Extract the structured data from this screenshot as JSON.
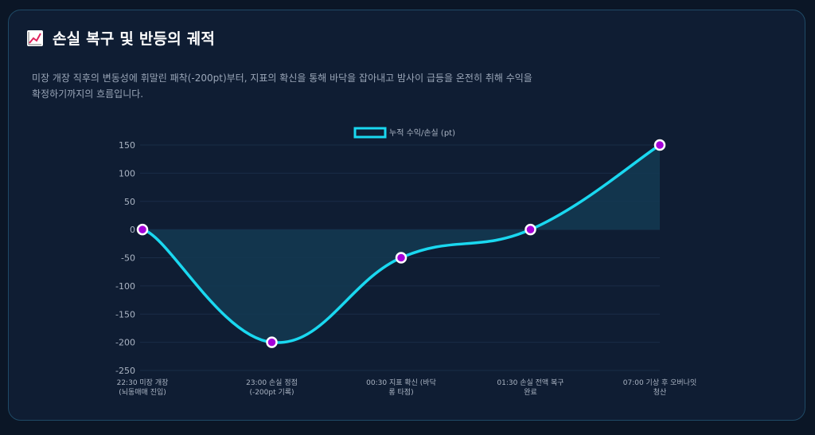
{
  "header": {
    "title": "손실 복구 및 반등의 궤적",
    "icon": "chart-increasing-icon",
    "subtitle": "미장 개장 직후의 변동성에 휘말린 패착(-200pt)부터, 지표의 확신을 통해 바닥을 잡아내고 밤사이 급등을 온전히 취해 수익을 확정하기까지의 흐름입니다."
  },
  "colors": {
    "line": "#1ad8f0",
    "fill": "#133a52",
    "point_fill": "#a400d8",
    "point_stroke": "#ffffff",
    "grid": "#1a2d47"
  },
  "chart_data": {
    "type": "line",
    "legend": "top-center",
    "grid": true,
    "ylim": [
      -250,
      150
    ],
    "yticks": [
      150,
      100,
      50,
      0,
      -50,
      -100,
      -150,
      -200,
      -250
    ],
    "categories": [
      [
        "22:30 미장 개장",
        "(뇌동매매 진입)"
      ],
      [
        "23:00 손실 정점",
        "(-200pt 기록)"
      ],
      [
        "00:30 지표 확신 (바닥",
        "롱 타점)"
      ],
      [
        "01:30 손실 전액 복구",
        "완료"
      ],
      [
        "07:00 기상 후 오버나잇",
        "청산"
      ]
    ],
    "series": [
      {
        "name": "누적 수익/손실 (pt)",
        "values": [
          0,
          -200,
          -50,
          0,
          150
        ]
      }
    ]
  }
}
